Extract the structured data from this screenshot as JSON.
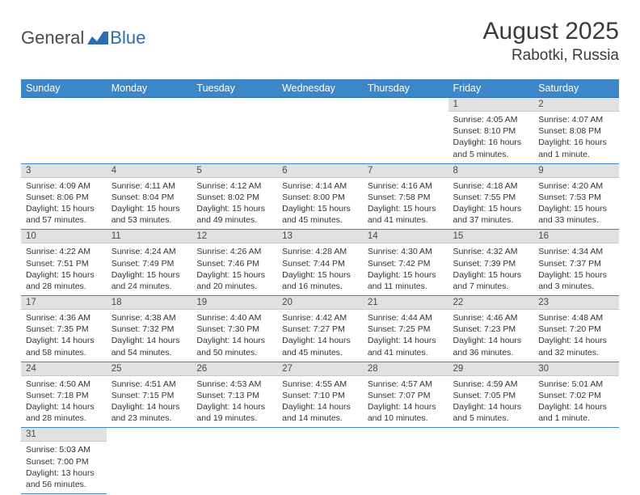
{
  "logo": {
    "text_general": "General",
    "text_blue": "Blue"
  },
  "header": {
    "month_title": "August 2025",
    "location": "Rabotki, Russia"
  },
  "colors": {
    "header_bg": "#3b87c8",
    "header_border": "#2a6db5",
    "row_divider": "#3b87c8",
    "daynum_bg": "#e1e1e1",
    "text": "#333333"
  },
  "weekdays": [
    "Sunday",
    "Monday",
    "Tuesday",
    "Wednesday",
    "Thursday",
    "Friday",
    "Saturday"
  ],
  "weeks": [
    [
      null,
      null,
      null,
      null,
      null,
      {
        "n": "1",
        "sunrise": "Sunrise: 4:05 AM",
        "sunset": "Sunset: 8:10 PM",
        "daylight": "Daylight: 16 hours and 5 minutes."
      },
      {
        "n": "2",
        "sunrise": "Sunrise: 4:07 AM",
        "sunset": "Sunset: 8:08 PM",
        "daylight": "Daylight: 16 hours and 1 minute."
      }
    ],
    [
      {
        "n": "3",
        "sunrise": "Sunrise: 4:09 AM",
        "sunset": "Sunset: 8:06 PM",
        "daylight": "Daylight: 15 hours and 57 minutes."
      },
      {
        "n": "4",
        "sunrise": "Sunrise: 4:11 AM",
        "sunset": "Sunset: 8:04 PM",
        "daylight": "Daylight: 15 hours and 53 minutes."
      },
      {
        "n": "5",
        "sunrise": "Sunrise: 4:12 AM",
        "sunset": "Sunset: 8:02 PM",
        "daylight": "Daylight: 15 hours and 49 minutes."
      },
      {
        "n": "6",
        "sunrise": "Sunrise: 4:14 AM",
        "sunset": "Sunset: 8:00 PM",
        "daylight": "Daylight: 15 hours and 45 minutes."
      },
      {
        "n": "7",
        "sunrise": "Sunrise: 4:16 AM",
        "sunset": "Sunset: 7:58 PM",
        "daylight": "Daylight: 15 hours and 41 minutes."
      },
      {
        "n": "8",
        "sunrise": "Sunrise: 4:18 AM",
        "sunset": "Sunset: 7:55 PM",
        "daylight": "Daylight: 15 hours and 37 minutes."
      },
      {
        "n": "9",
        "sunrise": "Sunrise: 4:20 AM",
        "sunset": "Sunset: 7:53 PM",
        "daylight": "Daylight: 15 hours and 33 minutes."
      }
    ],
    [
      {
        "n": "10",
        "sunrise": "Sunrise: 4:22 AM",
        "sunset": "Sunset: 7:51 PM",
        "daylight": "Daylight: 15 hours and 28 minutes."
      },
      {
        "n": "11",
        "sunrise": "Sunrise: 4:24 AM",
        "sunset": "Sunset: 7:49 PM",
        "daylight": "Daylight: 15 hours and 24 minutes."
      },
      {
        "n": "12",
        "sunrise": "Sunrise: 4:26 AM",
        "sunset": "Sunset: 7:46 PM",
        "daylight": "Daylight: 15 hours and 20 minutes."
      },
      {
        "n": "13",
        "sunrise": "Sunrise: 4:28 AM",
        "sunset": "Sunset: 7:44 PM",
        "daylight": "Daylight: 15 hours and 16 minutes."
      },
      {
        "n": "14",
        "sunrise": "Sunrise: 4:30 AM",
        "sunset": "Sunset: 7:42 PM",
        "daylight": "Daylight: 15 hours and 11 minutes."
      },
      {
        "n": "15",
        "sunrise": "Sunrise: 4:32 AM",
        "sunset": "Sunset: 7:39 PM",
        "daylight": "Daylight: 15 hours and 7 minutes."
      },
      {
        "n": "16",
        "sunrise": "Sunrise: 4:34 AM",
        "sunset": "Sunset: 7:37 PM",
        "daylight": "Daylight: 15 hours and 3 minutes."
      }
    ],
    [
      {
        "n": "17",
        "sunrise": "Sunrise: 4:36 AM",
        "sunset": "Sunset: 7:35 PM",
        "daylight": "Daylight: 14 hours and 58 minutes."
      },
      {
        "n": "18",
        "sunrise": "Sunrise: 4:38 AM",
        "sunset": "Sunset: 7:32 PM",
        "daylight": "Daylight: 14 hours and 54 minutes."
      },
      {
        "n": "19",
        "sunrise": "Sunrise: 4:40 AM",
        "sunset": "Sunset: 7:30 PM",
        "daylight": "Daylight: 14 hours and 50 minutes."
      },
      {
        "n": "20",
        "sunrise": "Sunrise: 4:42 AM",
        "sunset": "Sunset: 7:27 PM",
        "daylight": "Daylight: 14 hours and 45 minutes."
      },
      {
        "n": "21",
        "sunrise": "Sunrise: 4:44 AM",
        "sunset": "Sunset: 7:25 PM",
        "daylight": "Daylight: 14 hours and 41 minutes."
      },
      {
        "n": "22",
        "sunrise": "Sunrise: 4:46 AM",
        "sunset": "Sunset: 7:23 PM",
        "daylight": "Daylight: 14 hours and 36 minutes."
      },
      {
        "n": "23",
        "sunrise": "Sunrise: 4:48 AM",
        "sunset": "Sunset: 7:20 PM",
        "daylight": "Daylight: 14 hours and 32 minutes."
      }
    ],
    [
      {
        "n": "24",
        "sunrise": "Sunrise: 4:50 AM",
        "sunset": "Sunset: 7:18 PM",
        "daylight": "Daylight: 14 hours and 28 minutes."
      },
      {
        "n": "25",
        "sunrise": "Sunrise: 4:51 AM",
        "sunset": "Sunset: 7:15 PM",
        "daylight": "Daylight: 14 hours and 23 minutes."
      },
      {
        "n": "26",
        "sunrise": "Sunrise: 4:53 AM",
        "sunset": "Sunset: 7:13 PM",
        "daylight": "Daylight: 14 hours and 19 minutes."
      },
      {
        "n": "27",
        "sunrise": "Sunrise: 4:55 AM",
        "sunset": "Sunset: 7:10 PM",
        "daylight": "Daylight: 14 hours and 14 minutes."
      },
      {
        "n": "28",
        "sunrise": "Sunrise: 4:57 AM",
        "sunset": "Sunset: 7:07 PM",
        "daylight": "Daylight: 14 hours and 10 minutes."
      },
      {
        "n": "29",
        "sunrise": "Sunrise: 4:59 AM",
        "sunset": "Sunset: 7:05 PM",
        "daylight": "Daylight: 14 hours and 5 minutes."
      },
      {
        "n": "30",
        "sunrise": "Sunrise: 5:01 AM",
        "sunset": "Sunset: 7:02 PM",
        "daylight": "Daylight: 14 hours and 1 minute."
      }
    ],
    [
      {
        "n": "31",
        "sunrise": "Sunrise: 5:03 AM",
        "sunset": "Sunset: 7:00 PM",
        "daylight": "Daylight: 13 hours and 56 minutes."
      },
      null,
      null,
      null,
      null,
      null,
      null
    ]
  ]
}
